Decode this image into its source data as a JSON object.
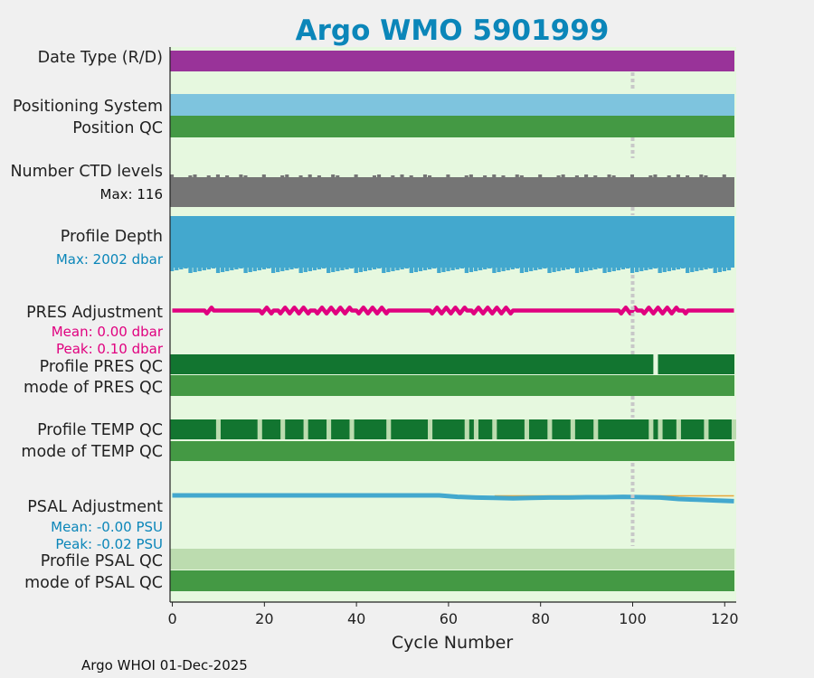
{
  "chart_data": {
    "type": "bar",
    "title": "Argo WMO 5901999",
    "xlabel": "Cycle Number",
    "xlim": [
      -0.5,
      122.5
    ],
    "x_ticks": [
      "0",
      "20",
      "40",
      "60",
      "80",
      "100",
      "120"
    ],
    "x_tick_values": [
      0,
      20,
      40,
      60,
      80,
      100,
      120
    ],
    "highlight_cycle": 100,
    "footer": "Argo WHOI 01-Dec-2025",
    "panels": [
      {
        "key": "date_type",
        "label": "Date Type (R/D)",
        "color": "#993399"
      },
      {
        "key": "positioning_system",
        "label": "Positioning System",
        "color": "#7ec4de"
      },
      {
        "key": "position_qc",
        "label": "Position QC",
        "color": "#449944"
      },
      {
        "key": "ctd_levels",
        "label": "Number CTD levels",
        "sub": "Max: 116",
        "sub_color": "#111111",
        "color": "#757575"
      },
      {
        "key": "profile_depth",
        "label": "Profile Depth",
        "sub": "Max: 2002 dbar",
        "sub_color": "#0b86b9",
        "color": "#43a8ce"
      },
      {
        "key": "pres_adjustment",
        "label": "PRES Adjustment",
        "sub": "Mean: 0.00 dbar",
        "sub2": "Peak: 0.10 dbar",
        "sub_color": "#e0007f",
        "color": "#e0007f"
      },
      {
        "key": "profile_pres_qc",
        "label": "Profile PRES QC",
        "color": "#127530",
        "gap_color": "#e6f8df",
        "gaps": [
          105
        ]
      },
      {
        "key": "mode_pres_qc",
        "label": "mode of PRES QC",
        "color": "#449944"
      },
      {
        "key": "profile_temp_qc",
        "label": "Profile TEMP QC",
        "color": "#127530",
        "gap_color": "#bcdcaf",
        "gaps": [
          10,
          19,
          24,
          29,
          34,
          39,
          47,
          56,
          64,
          66,
          70,
          77,
          82,
          87,
          92,
          104,
          106,
          110,
          116,
          122
        ]
      },
      {
        "key": "mode_temp_qc",
        "label": "mode of TEMP QC",
        "color": "#449944"
      },
      {
        "key": "psal_adjustment",
        "label": "PSAL Adjustment",
        "sub": "Mean: -0.00 PSU",
        "sub2": "Peak: -0.02 PSU",
        "sub_color": "#0b86b9",
        "color": "#43a8ce",
        "accent": "#e8a63a",
        "x": [
          0,
          20,
          40,
          58,
          62,
          66,
          70,
          74,
          78,
          82,
          86,
          90,
          94,
          98,
          102,
          106,
          110,
          114,
          118,
          122
        ],
        "y": [
          0.0,
          0.0,
          0.0,
          0.0,
          -0.004,
          -0.006,
          -0.007,
          -0.008,
          -0.007,
          -0.006,
          -0.006,
          -0.005,
          -0.005,
          -0.004,
          -0.005,
          -0.006,
          -0.01,
          -0.012,
          -0.014,
          -0.016
        ],
        "ylim": [
          -0.05,
          0.01
        ]
      },
      {
        "key": "profile_psal_qc",
        "label": "Profile PSAL QC",
        "color": "#bcdcaf"
      },
      {
        "key": "mode_psal_qc",
        "label": "mode of PSAL QC",
        "color": "#449944"
      }
    ]
  }
}
